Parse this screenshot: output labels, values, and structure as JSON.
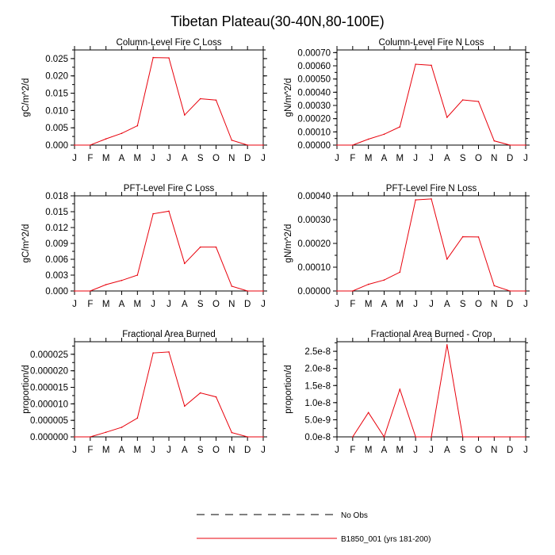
{
  "figure_title": "Tibetan Plateau(30-40N,80-100E)",
  "legend": [
    {
      "label": "No Obs",
      "style": "dashed",
      "color": "#000000"
    },
    {
      "label": "B1850_001 (yrs 181-200)",
      "style": "solid",
      "color": "#e8000b"
    }
  ],
  "chart_data": [
    {
      "type": "line",
      "title": "Column-Level Fire C Loss",
      "ylabel": "gC/m^2/d",
      "xlabel": "",
      "categories": [
        "J",
        "F",
        "M",
        "A",
        "M",
        "J",
        "J",
        "A",
        "S",
        "O",
        "N",
        "D",
        "J"
      ],
      "ylim": [
        0,
        0.0275
      ],
      "yticks": [
        "0.000",
        "0.005",
        "0.010",
        "0.015",
        "0.020",
        "0.025"
      ],
      "ytick_values": [
        0,
        0.005,
        0.01,
        0.015,
        0.02,
        0.025
      ],
      "series": [
        {
          "name": "B1850_001 (yrs 181-200)",
          "color": "#e8000b",
          "values": [
            0,
            0,
            0.0018,
            0.0034,
            0.0056,
            0.0253,
            0.0252,
            0.0087,
            0.0134,
            0.013,
            0.0014,
            0,
            0
          ]
        }
      ]
    },
    {
      "type": "line",
      "title": "Column-Level Fire N Loss",
      "ylabel": "gN/m^2/d",
      "xlabel": "",
      "categories": [
        "J",
        "F",
        "M",
        "A",
        "M",
        "J",
        "J",
        "A",
        "S",
        "O",
        "N",
        "D",
        "J"
      ],
      "ylim": [
        0,
        0.00072
      ],
      "yticks": [
        "0.00000",
        "0.00010",
        "0.00020",
        "0.00030",
        "0.00040",
        "0.00050",
        "0.00060",
        "0.00070"
      ],
      "ytick_values": [
        0,
        0.0001,
        0.0002,
        0.0003,
        0.0004,
        0.0005,
        0.0006,
        0.0007
      ],
      "series": [
        {
          "name": "B1850_001 (yrs 181-200)",
          "color": "#e8000b",
          "values": [
            0,
            0,
            4.5e-05,
            8.2e-05,
            0.000138,
            0.000612,
            0.000604,
            0.00021,
            0.000342,
            0.00033,
            3.2e-05,
            0,
            0
          ]
        }
      ]
    },
    {
      "type": "line",
      "title": "PFT-Level Fire C Loss",
      "ylabel": "gC/m^2/d",
      "xlabel": "",
      "categories": [
        "J",
        "F",
        "M",
        "A",
        "M",
        "J",
        "J",
        "A",
        "S",
        "O",
        "N",
        "D",
        "J"
      ],
      "ylim": [
        0,
        0.018
      ],
      "yticks": [
        "0.000",
        "0.003",
        "0.006",
        "0.009",
        "0.012",
        "0.015",
        "0.018"
      ],
      "ytick_values": [
        0,
        0.003,
        0.006,
        0.009,
        0.012,
        0.015,
        0.018
      ],
      "series": [
        {
          "name": "B1850_001 (yrs 181-200)",
          "color": "#e8000b",
          "values": [
            0,
            0,
            0.0012,
            0.002,
            0.003,
            0.0146,
            0.0151,
            0.0052,
            0.0083,
            0.0083,
            0.0009,
            0,
            0
          ]
        }
      ]
    },
    {
      "type": "line",
      "title": "PFT-Level Fire N Loss",
      "ylabel": "gN/m^2/d",
      "xlabel": "",
      "categories": [
        "J",
        "F",
        "M",
        "A",
        "M",
        "J",
        "J",
        "A",
        "S",
        "O",
        "N",
        "D",
        "J"
      ],
      "ylim": [
        0,
        0.0004
      ],
      "yticks": [
        "0.00000",
        "0.00010",
        "0.00020",
        "0.00030",
        "0.00040"
      ],
      "ytick_values": [
        0,
        0.0001,
        0.0002,
        0.0003,
        0.0004
      ],
      "series": [
        {
          "name": "B1850_001 (yrs 181-200)",
          "color": "#e8000b",
          "values": [
            0,
            0,
            2.8e-05,
            4.6e-05,
            7.9e-05,
            0.000383,
            0.000387,
            0.000134,
            0.000228,
            0.000227,
            2.2e-05,
            0,
            0
          ]
        }
      ]
    },
    {
      "type": "line",
      "title": "Fractional Area Burned",
      "ylabel": "proportion/d",
      "xlabel": "",
      "categories": [
        "J",
        "F",
        "M",
        "A",
        "M",
        "J",
        "J",
        "A",
        "S",
        "O",
        "N",
        "D",
        "J"
      ],
      "ylim": [
        0,
        2.88e-05
      ],
      "yticks": [
        "0.000000",
        "0.000005",
        "0.000010",
        "0.000015",
        "0.000020",
        "0.000025"
      ],
      "ytick_values": [
        0,
        5e-06,
        1e-05,
        1.5e-05,
        2e-05,
        2.5e-05
      ],
      "series": [
        {
          "name": "B1850_001 (yrs 181-200)",
          "color": "#e8000b",
          "values": [
            0,
            0,
            1.4e-06,
            2.9e-06,
            5.7e-06,
            2.54e-05,
            2.57e-05,
            9.3e-06,
            1.33e-05,
            1.21e-05,
            1.3e-06,
            0,
            0
          ]
        }
      ]
    },
    {
      "type": "line",
      "title": "Fractional Area Burned - Crop",
      "ylabel": "proportion/d",
      "xlabel": "",
      "categories": [
        "J",
        "F",
        "M",
        "A",
        "M",
        "J",
        "J",
        "A",
        "S",
        "O",
        "N",
        "D",
        "J"
      ],
      "ylim": [
        0,
        2.78e-08
      ],
      "yticks": [
        "0.0e-8",
        "5.0e-9",
        "1.0e-8",
        "1.5e-8",
        "2.0e-8",
        "2.5e-8"
      ],
      "ytick_values": [
        0,
        5e-09,
        1e-08,
        1.5e-08,
        2e-08,
        2.5e-08
      ],
      "series": [
        {
          "name": "B1850_001 (yrs 181-200)",
          "color": "#e8000b",
          "values": [
            null,
            0,
            7.1e-09,
            0,
            1.39e-08,
            0,
            0,
            2.69e-08,
            0,
            0,
            0,
            0,
            0
          ]
        }
      ]
    }
  ]
}
